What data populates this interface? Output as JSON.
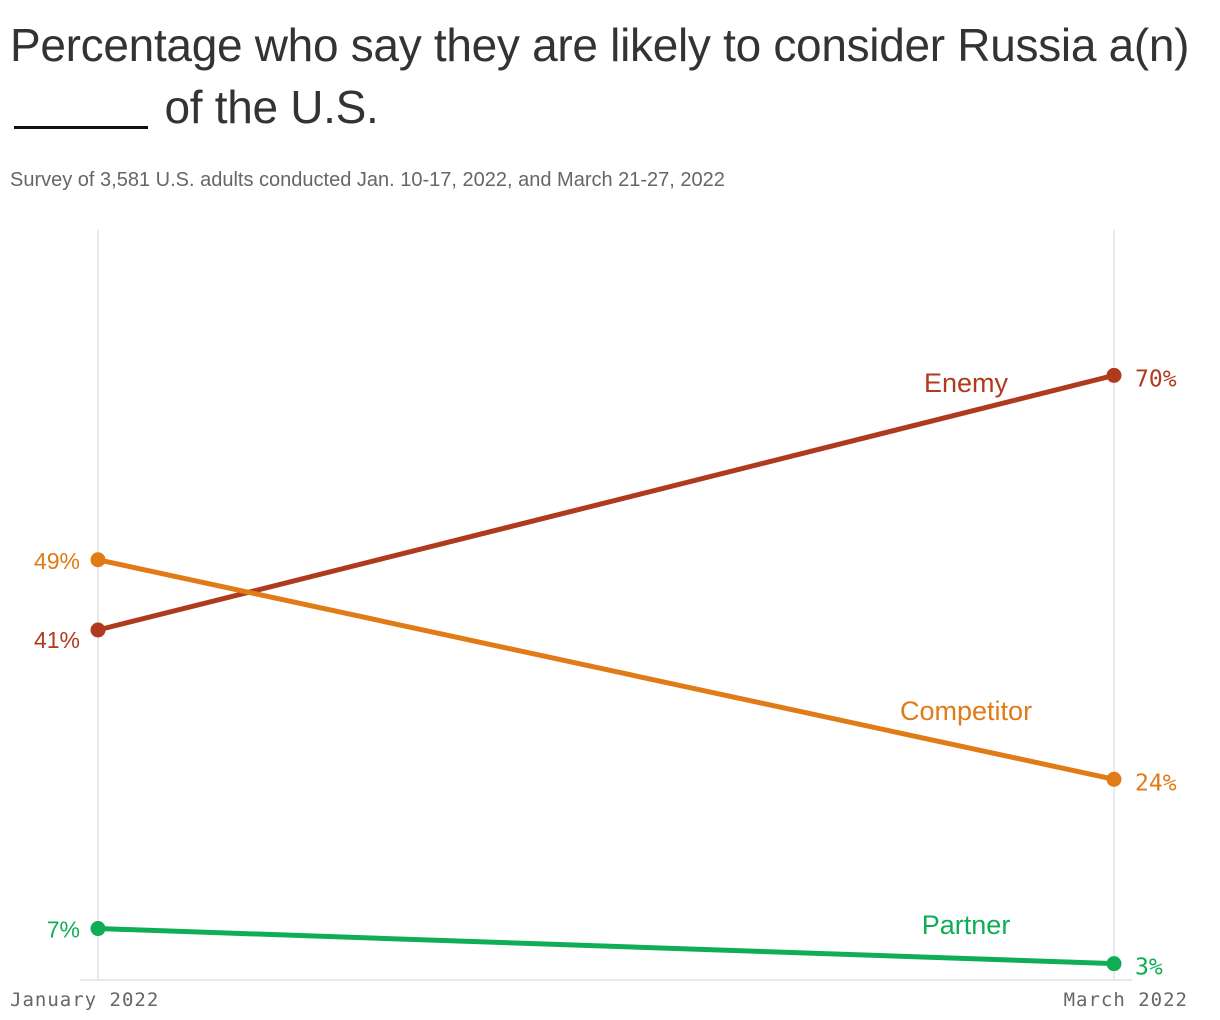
{
  "header": {
    "title": "Percentage who say they are likely to consider Russia a(n) _____ of the U.S.",
    "subtitle": "Survey of 3,581 U.S. adults conducted Jan. 10-17, 2022, and March 21-27, 2022"
  },
  "chart_data": {
    "type": "line",
    "x": [
      "January 2022",
      "March 2022"
    ],
    "ylim": [
      0,
      82
    ],
    "grid": "vertical lines at each x",
    "legend": "inline labels on lines",
    "series": [
      {
        "name": "Enemy",
        "values": [
          41,
          70
        ],
        "labels": [
          "41%",
          "70%"
        ],
        "color": "#b03a1e"
      },
      {
        "name": "Competitor",
        "values": [
          49,
          24
        ],
        "labels": [
          "49%",
          "24%"
        ],
        "color": "#e07b16"
      },
      {
        "name": "Partner",
        "values": [
          7,
          3
        ],
        "labels": [
          "7%",
          "3%"
        ],
        "color": "#0fad55"
      }
    ]
  }
}
